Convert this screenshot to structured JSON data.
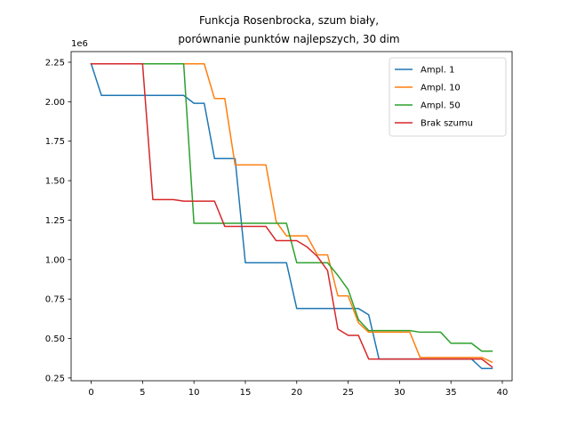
{
  "chart_data": {
    "type": "line",
    "title_lines": [
      "Funkcja Rosenbrocka, szum biały,",
      "porównanie punktów najlepszych, 30 dim"
    ],
    "xlabel": "",
    "ylabel": "",
    "y_offset_text": "1e6",
    "xlim": [
      -1.95,
      40.95
    ],
    "ylim": [
      0.2325,
      2.3175
    ],
    "x_ticks": [
      0,
      5,
      10,
      15,
      20,
      25,
      30,
      35,
      40
    ],
    "x_tick_labels": [
      "0",
      "5",
      "10",
      "15",
      "20",
      "25",
      "30",
      "35",
      "40"
    ],
    "y_ticks": [
      0.25,
      0.5,
      0.75,
      1.0,
      1.25,
      1.5,
      1.75,
      2.0,
      2.25
    ],
    "y_tick_labels": [
      "0.25",
      "0.50",
      "0.75",
      "1.00",
      "1.25",
      "1.50",
      "1.75",
      "2.00",
      "2.25"
    ],
    "grid": false,
    "legend_position": "top-right",
    "x": [
      0,
      1,
      2,
      3,
      4,
      5,
      6,
      7,
      8,
      9,
      10,
      11,
      12,
      13,
      14,
      15,
      16,
      17,
      18,
      19,
      20,
      21,
      22,
      23,
      24,
      25,
      26,
      27,
      28,
      29,
      30,
      31,
      32,
      33,
      34,
      35,
      36,
      37,
      38,
      39
    ],
    "series": [
      {
        "name": "Ampl. 1",
        "color": "#1f77b4",
        "values": [
          2.24,
          2.04,
          2.04,
          2.04,
          2.04,
          2.04,
          2.04,
          2.04,
          2.04,
          2.04,
          1.99,
          1.99,
          1.64,
          1.64,
          1.64,
          0.98,
          0.98,
          0.98,
          0.98,
          0.98,
          0.69,
          0.69,
          0.69,
          0.69,
          0.69,
          0.69,
          0.69,
          0.65,
          0.37,
          0.37,
          0.37,
          0.37,
          0.37,
          0.37,
          0.37,
          0.37,
          0.37,
          0.37,
          0.31,
          0.31
        ]
      },
      {
        "name": "Ampl. 10",
        "color": "#ff7f0e",
        "values": [
          2.24,
          2.24,
          2.24,
          2.24,
          2.24,
          2.24,
          2.24,
          2.24,
          2.24,
          2.24,
          2.24,
          2.24,
          2.02,
          2.02,
          1.6,
          1.6,
          1.6,
          1.6,
          1.24,
          1.15,
          1.15,
          1.15,
          1.03,
          1.03,
          0.77,
          0.77,
          0.6,
          0.54,
          0.54,
          0.54,
          0.54,
          0.54,
          0.38,
          0.38,
          0.38,
          0.38,
          0.38,
          0.38,
          0.38,
          0.35
        ]
      },
      {
        "name": "Ampl. 50",
        "color": "#2ca02c",
        "values": [
          2.24,
          2.24,
          2.24,
          2.24,
          2.24,
          2.24,
          2.24,
          2.24,
          2.24,
          2.24,
          1.23,
          1.23,
          1.23,
          1.23,
          1.23,
          1.23,
          1.23,
          1.23,
          1.23,
          1.23,
          0.98,
          0.98,
          0.98,
          0.98,
          0.9,
          0.81,
          0.62,
          0.55,
          0.55,
          0.55,
          0.55,
          0.55,
          0.54,
          0.54,
          0.54,
          0.47,
          0.47,
          0.47,
          0.42,
          0.42
        ]
      },
      {
        "name": "Brak szumu",
        "color": "#d62728",
        "values": [
          2.24,
          2.24,
          2.24,
          2.24,
          2.24,
          2.24,
          1.38,
          1.38,
          1.38,
          1.37,
          1.37,
          1.37,
          1.37,
          1.21,
          1.21,
          1.21,
          1.21,
          1.21,
          1.12,
          1.12,
          1.12,
          1.08,
          1.02,
          0.93,
          0.56,
          0.52,
          0.52,
          0.37,
          0.37,
          0.37,
          0.37,
          0.37,
          0.37,
          0.37,
          0.37,
          0.37,
          0.37,
          0.37,
          0.37,
          0.32
        ]
      }
    ]
  }
}
